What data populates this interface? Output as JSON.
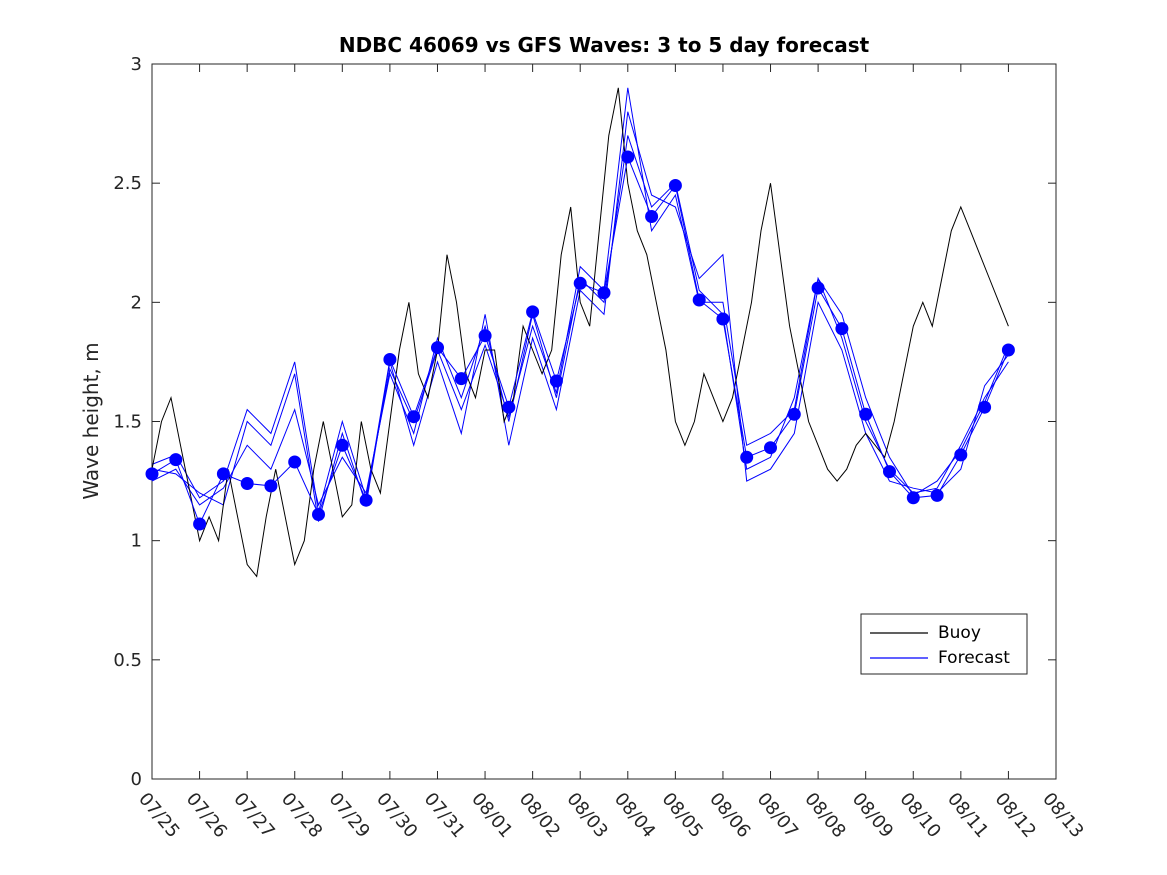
{
  "chart_data": {
    "type": "line",
    "title": "NDBC 46069 vs GFS Waves: 3 to 5 day forecast",
    "xlabel": "",
    "ylabel": "Wave height, m",
    "xlim": [
      "07/25",
      "08/13"
    ],
    "ylim": [
      0,
      3
    ],
    "x_ticks": [
      "07/25",
      "07/26",
      "07/27",
      "07/28",
      "07/29",
      "07/30",
      "07/31",
      "08/01",
      "08/02",
      "08/03",
      "08/04",
      "08/05",
      "08/06",
      "08/07",
      "08/08",
      "08/09",
      "08/10",
      "08/11",
      "08/12",
      "08/13"
    ],
    "y_ticks": [
      "0",
      "0.5",
      "1",
      "1.5",
      "2",
      "2.5",
      "3"
    ],
    "grid": false,
    "legend_position": "lower-right",
    "colors": {
      "buoy": "#000000",
      "forecast": "#0000ff"
    },
    "series": [
      {
        "name": "Buoy",
        "x_day_offset": [
          0,
          0.2,
          0.4,
          0.6,
          0.8,
          1.0,
          1.2,
          1.4,
          1.6,
          1.8,
          2.0,
          2.2,
          2.4,
          2.6,
          2.8,
          3.0,
          3.2,
          3.4,
          3.6,
          3.8,
          4.0,
          4.2,
          4.4,
          4.6,
          4.8,
          5.0,
          5.2,
          5.4,
          5.6,
          5.8,
          6.0,
          6.2,
          6.4,
          6.6,
          6.8,
          7.0,
          7.2,
          7.4,
          7.6,
          7.8,
          8.0,
          8.2,
          8.4,
          8.6,
          8.8,
          9.0,
          9.2,
          9.4,
          9.6,
          9.8,
          10.0,
          10.2,
          10.4,
          10.6,
          10.8,
          11.0,
          11.2,
          11.4,
          11.6,
          11.8,
          12.0,
          12.2,
          12.4,
          12.6,
          12.8,
          13.0,
          13.2,
          13.4,
          13.6,
          13.8,
          14.0,
          14.2,
          14.4,
          14.6,
          14.8,
          15.0,
          15.2,
          15.4,
          15.6,
          15.8,
          16.0,
          16.2,
          16.4,
          16.6,
          16.8,
          17.0,
          17.2,
          17.4,
          17.6,
          17.8,
          18.0
        ],
        "values": [
          1.3,
          1.5,
          1.6,
          1.4,
          1.2,
          1.0,
          1.1,
          1.0,
          1.3,
          1.1,
          0.9,
          0.85,
          1.1,
          1.3,
          1.1,
          0.9,
          1.0,
          1.3,
          1.5,
          1.3,
          1.1,
          1.15,
          1.5,
          1.3,
          1.2,
          1.5,
          1.8,
          2.0,
          1.7,
          1.6,
          1.8,
          2.2,
          2.0,
          1.7,
          1.6,
          1.8,
          1.8,
          1.5,
          1.6,
          1.9,
          1.8,
          1.7,
          1.8,
          2.2,
          2.4,
          2.0,
          1.9,
          2.3,
          2.7,
          2.9,
          2.5,
          2.3,
          2.2,
          2.0,
          1.8,
          1.5,
          1.4,
          1.5,
          1.7,
          1.6,
          1.5,
          1.6,
          1.8,
          2.0,
          2.3,
          2.5,
          2.2,
          1.9,
          1.7,
          1.5,
          1.4,
          1.3,
          1.25,
          1.3,
          1.4,
          1.45,
          1.4,
          1.35,
          1.5,
          1.7,
          1.9,
          2.0,
          1.9,
          2.1,
          2.3,
          2.4,
          2.3,
          2.2,
          2.1,
          2.0,
          1.9
        ]
      },
      {
        "name": "Forecast",
        "x_day_offset": [
          0,
          0.5,
          1.0,
          1.5,
          2.0,
          2.5,
          3.0,
          3.5,
          4.0,
          4.5,
          5.0,
          5.5,
          6.0,
          6.5,
          7.0,
          7.5,
          8.0,
          8.5,
          9.0,
          9.5,
          10.0,
          10.5,
          11.0,
          11.5,
          12.0,
          12.5,
          13.0,
          13.5,
          14.0,
          14.5,
          15.0,
          15.5,
          16.0,
          16.5,
          17.0,
          17.5,
          18.0
        ],
        "values": [
          1.28,
          1.34,
          1.07,
          1.28,
          1.24,
          1.23,
          1.33,
          1.11,
          1.4,
          1.17,
          1.76,
          1.52,
          1.81,
          1.68,
          1.86,
          1.56,
          1.96,
          1.67,
          2.08,
          2.04,
          2.61,
          2.36,
          2.49,
          2.01,
          1.93,
          1.35,
          1.39,
          1.53,
          2.06,
          1.89,
          1.53,
          1.29,
          1.18,
          1.19,
          1.36,
          1.56,
          1.8
        ]
      },
      {
        "name": "",
        "x_day_offset": [
          0,
          0.5,
          1.0,
          1.5,
          2.0,
          2.5,
          3.0,
          3.5,
          4.0,
          4.5,
          5.0,
          5.5,
          6.0,
          6.5,
          7.0,
          7.5,
          8.0,
          8.5,
          9.0,
          9.5,
          10.0,
          10.5,
          11.0,
          11.5,
          12.0,
          12.5,
          13.0,
          13.5,
          14.0,
          14.5,
          15.0,
          15.5,
          16.0,
          16.5,
          17.0,
          17.5,
          18.0
        ],
        "values": [
          1.25,
          1.3,
          1.15,
          1.22,
          1.4,
          1.3,
          1.55,
          1.15,
          1.35,
          1.2,
          1.7,
          1.45,
          1.85,
          1.6,
          1.9,
          1.5,
          1.95,
          1.6,
          2.1,
          2.0,
          2.7,
          2.4,
          2.5,
          2.05,
          1.95,
          1.3,
          1.35,
          1.6,
          2.1,
          1.85,
          1.5,
          1.3,
          1.2,
          1.22,
          1.4,
          1.6,
          1.75
        ]
      },
      {
        "name": "",
        "x_day_offset": [
          0,
          0.5,
          1.0,
          1.5,
          2.0,
          2.5,
          3.0,
          3.5,
          4.0,
          4.5,
          5.0,
          5.5,
          6.0,
          6.5,
          7.0,
          7.5,
          8.0,
          8.5,
          9.0,
          9.5,
          10.0,
          10.5,
          11.0,
          11.5,
          12.0,
          12.5,
          13.0,
          13.5,
          14.0,
          14.5,
          15.0,
          15.5,
          16.0,
          16.5,
          17.0,
          17.5,
          18.0
        ],
        "values": [
          1.3,
          1.28,
          1.2,
          1.15,
          1.5,
          1.4,
          1.7,
          1.08,
          1.45,
          1.15,
          1.75,
          1.4,
          1.75,
          1.45,
          1.95,
          1.4,
          1.85,
          1.55,
          2.05,
          1.95,
          2.8,
          2.45,
          2.4,
          2.1,
          2.2,
          1.25,
          1.3,
          1.45,
          2.0,
          1.8,
          1.45,
          1.25,
          1.22,
          1.2,
          1.3,
          1.65,
          1.78
        ]
      },
      {
        "name": "",
        "x_day_offset": [
          0,
          0.5,
          1.0,
          1.5,
          2.0,
          2.5,
          3.0,
          3.5,
          4.0,
          4.5,
          5.0,
          5.5,
          6.0,
          6.5,
          7.0,
          7.5,
          8.0,
          8.5,
          9.0,
          9.5,
          10.0,
          10.5,
          11.0,
          11.5,
          12.0,
          12.5,
          13.0,
          13.5,
          14.0,
          14.5,
          15.0,
          15.5,
          16.0,
          16.5,
          17.0,
          17.5,
          18.0
        ],
        "values": [
          1.32,
          1.36,
          1.18,
          1.25,
          1.55,
          1.45,
          1.75,
          1.12,
          1.5,
          1.18,
          1.72,
          1.5,
          1.8,
          1.55,
          1.82,
          1.52,
          1.9,
          1.62,
          2.15,
          2.05,
          2.9,
          2.3,
          2.45,
          2.0,
          2.0,
          1.4,
          1.45,
          1.55,
          2.1,
          1.95,
          1.6,
          1.35,
          1.19,
          1.25,
          1.38,
          1.58,
          1.82
        ]
      }
    ],
    "legend": [
      "Buoy",
      "Forecast"
    ]
  }
}
